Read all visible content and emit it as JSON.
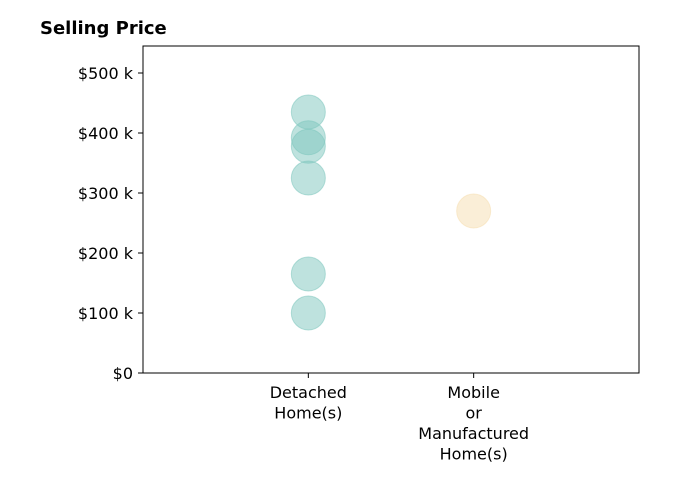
{
  "chart_data": {
    "type": "scatter",
    "title": "Selling Price",
    "xlabel": "",
    "ylabel": "",
    "categories": [
      [
        "Detached",
        "Home(s)"
      ],
      [
        "Mobile",
        "or",
        "Manufactured",
        "Home(s)"
      ]
    ],
    "xlim": [
      -1,
      2
    ],
    "ylim": [
      0,
      545000
    ],
    "yticks": [
      {
        "value": 0,
        "label": "$0"
      },
      {
        "value": 100000,
        "label": "$100 k"
      },
      {
        "value": 200000,
        "label": "$200 k"
      },
      {
        "value": 300000,
        "label": "$300 k"
      },
      {
        "value": 400000,
        "label": "$400 k"
      },
      {
        "value": 500000,
        "label": "$500 k"
      }
    ],
    "grid": false,
    "series": [
      {
        "category_index": 0,
        "color": "#7dc6bd",
        "values": [
          435000,
          392000,
          378000,
          325000,
          165000,
          100000
        ]
      },
      {
        "category_index": 1,
        "color": "#f5deb0",
        "values": [
          270000
        ]
      }
    ]
  }
}
